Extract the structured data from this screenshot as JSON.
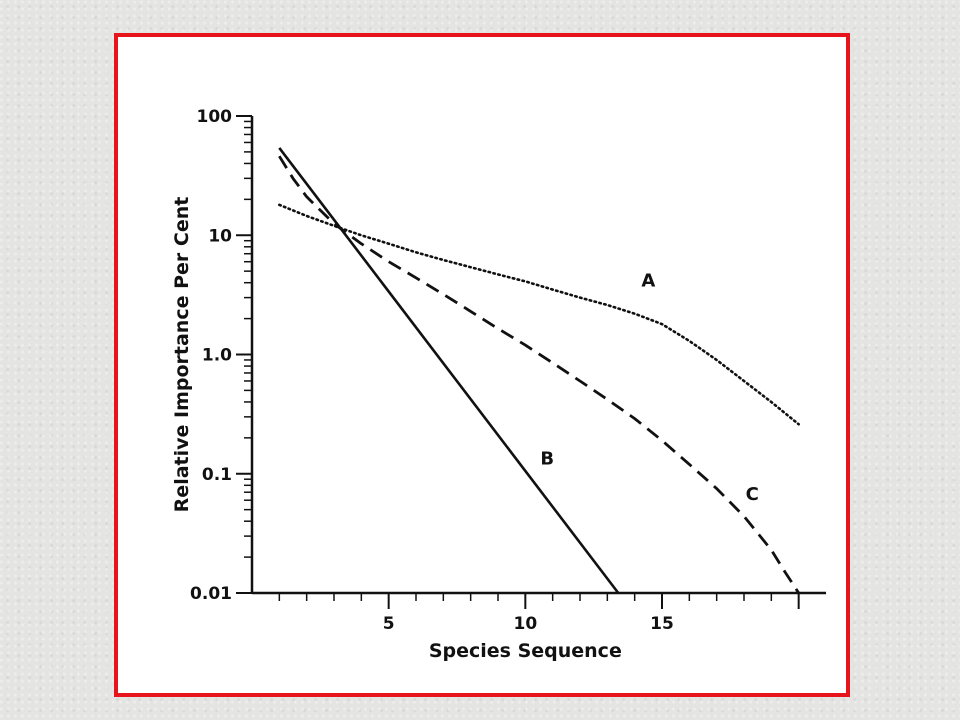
{
  "chart_data": {
    "type": "line",
    "title": "",
    "xlabel": "Species Sequence",
    "ylabel": "Relative Importance Per Cent",
    "y_scale": "log",
    "xlim": [
      0,
      21
    ],
    "ylim": [
      0.01,
      100
    ],
    "x_ticks": [
      5,
      10,
      15
    ],
    "y_ticks": [
      {
        "value": 100,
        "label": "100"
      },
      {
        "value": 10,
        "label": "10"
      },
      {
        "value": 1,
        "label": "1.0"
      },
      {
        "value": 0.1,
        "label": "0.1"
      },
      {
        "value": 0.01,
        "label": "0.01"
      }
    ],
    "grid": false,
    "series": [
      {
        "name": "A",
        "style": "dotted",
        "x": [
          1,
          2,
          3,
          4,
          5,
          6,
          7,
          8,
          9,
          10,
          11,
          12,
          13,
          14,
          15,
          16,
          17,
          18,
          19,
          20
        ],
        "y": [
          18,
          14.5,
          12,
          10,
          8.5,
          7.2,
          6.2,
          5.4,
          4.7,
          4.1,
          3.5,
          3.0,
          2.6,
          2.2,
          1.8,
          1.3,
          0.9,
          0.6,
          0.4,
          0.26
        ]
      },
      {
        "name": "B",
        "style": "solid",
        "x": [
          1,
          13.4
        ],
        "y": [
          54,
          0.01
        ]
      },
      {
        "name": "C",
        "style": "dashed",
        "x": [
          1,
          1.5,
          2,
          3,
          4,
          5,
          6,
          7,
          8,
          9,
          10,
          11,
          12,
          13,
          14,
          15,
          16,
          17,
          18,
          19,
          19.5,
          20
        ],
        "y": [
          46,
          30,
          21,
          12.5,
          8.5,
          6.0,
          4.4,
          3.2,
          2.3,
          1.65,
          1.2,
          0.85,
          0.6,
          0.42,
          0.29,
          0.19,
          0.12,
          0.075,
          0.044,
          0.023,
          0.015,
          0.01
        ]
      }
    ],
    "line_color": "#111111"
  }
}
